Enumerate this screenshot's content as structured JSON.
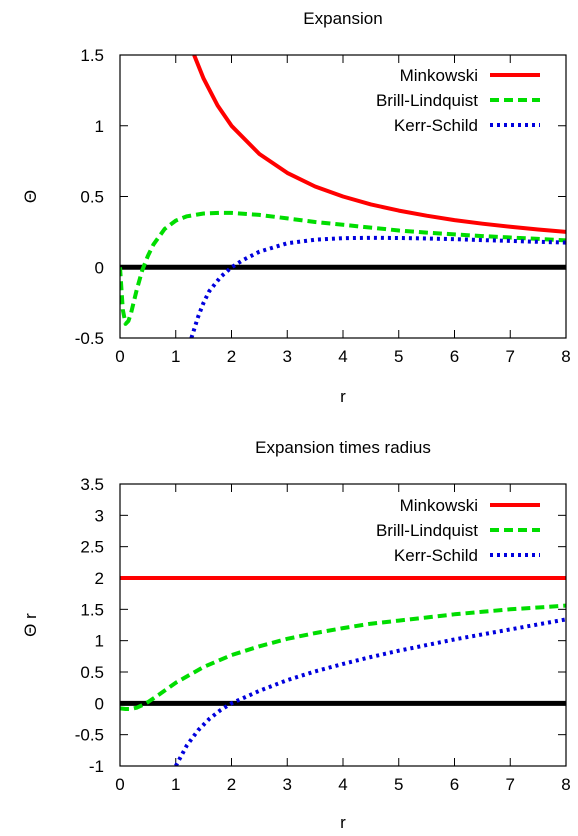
{
  "chart_data": [
    {
      "type": "line",
      "title": "Expansion",
      "xlabel": "r",
      "ylabel": "Θ",
      "xlim": [
        0,
        8
      ],
      "ylim": [
        -0.5,
        1.5
      ],
      "xticks": [
        "0",
        "1",
        "2",
        "3",
        "4",
        "5",
        "6",
        "7",
        "8"
      ],
      "yticks": [
        "-0.5",
        "0",
        "0.5",
        "1",
        "1.5"
      ],
      "legend_position": "top-right",
      "zero_line": true,
      "series": [
        {
          "name": "Minkowski",
          "color": "#ff0000",
          "dash": "solid",
          "x": [
            1.33,
            1.5,
            1.75,
            2.0,
            2.5,
            3.0,
            3.5,
            4.0,
            4.5,
            5.0,
            5.5,
            6.0,
            6.5,
            7.0,
            7.5,
            8.0
          ],
          "y": [
            1.5,
            1.333,
            1.143,
            1.0,
            0.8,
            0.667,
            0.571,
            0.5,
            0.444,
            0.4,
            0.364,
            0.333,
            0.308,
            0.286,
            0.267,
            0.25
          ]
        },
        {
          "name": "Brill-Lindquist",
          "color": "#00dd00",
          "dash": "dashed",
          "x": [
            0.0,
            0.05,
            0.1,
            0.15,
            0.2,
            0.3,
            0.4,
            0.5,
            0.6,
            0.8,
            1.0,
            1.2,
            1.5,
            1.8,
            2.0,
            2.5,
            3.0,
            3.5,
            4.0,
            4.5,
            5.0,
            5.5,
            6.0,
            6.5,
            7.0,
            7.5,
            8.0
          ],
          "y": [
            0.0,
            -0.3,
            -0.4,
            -0.38,
            -0.32,
            -0.16,
            -0.02,
            0.08,
            0.16,
            0.27,
            0.33,
            0.36,
            0.38,
            0.385,
            0.384,
            0.37,
            0.345,
            0.32,
            0.3,
            0.28,
            0.26,
            0.245,
            0.232,
            0.22,
            0.21,
            0.2,
            0.19
          ]
        },
        {
          "name": "Kerr-Schild",
          "color": "#0000dd",
          "dash": "dotted",
          "x": [
            1.28,
            1.4,
            1.5,
            1.6,
            1.8,
            2.0,
            2.2,
            2.5,
            3.0,
            3.5,
            4.0,
            4.5,
            5.0,
            5.5,
            6.0,
            6.5,
            7.0,
            7.5,
            8.0
          ],
          "y": [
            -0.5,
            -0.35,
            -0.25,
            -0.17,
            -0.07,
            0.0,
            0.05,
            0.11,
            0.17,
            0.195,
            0.205,
            0.208,
            0.207,
            0.203,
            0.198,
            0.192,
            0.186,
            0.18,
            0.174
          ]
        }
      ]
    },
    {
      "type": "line",
      "title": "Expansion times radius",
      "xlabel": "r",
      "ylabel": "Θ r",
      "xlim": [
        0,
        8
      ],
      "ylim": [
        -1,
        3.5
      ],
      "xticks": [
        "0",
        "1",
        "2",
        "3",
        "4",
        "5",
        "6",
        "7",
        "8"
      ],
      "yticks": [
        "-1",
        "-0.5",
        "0",
        "0.5",
        "1",
        "1.5",
        "2",
        "2.5",
        "3",
        "3.5"
      ],
      "legend_position": "top-right",
      "zero_line": true,
      "series": [
        {
          "name": "Minkowski",
          "color": "#ff0000",
          "dash": "solid",
          "x": [
            0.0,
            8.0
          ],
          "y": [
            2.0,
            2.0
          ]
        },
        {
          "name": "Brill-Lindquist",
          "color": "#00dd00",
          "dash": "dashed",
          "x": [
            0.0,
            0.1,
            0.2,
            0.3,
            0.4,
            0.5,
            0.7,
            1.0,
            1.5,
            2.0,
            2.5,
            3.0,
            3.5,
            4.0,
            4.5,
            5.0,
            5.5,
            6.0,
            6.5,
            7.0,
            7.5,
            8.0
          ],
          "y": [
            -0.08,
            -0.09,
            -0.09,
            -0.07,
            -0.03,
            0.02,
            0.14,
            0.33,
            0.58,
            0.77,
            0.91,
            1.03,
            1.12,
            1.2,
            1.27,
            1.32,
            1.37,
            1.42,
            1.46,
            1.5,
            1.53,
            1.56
          ]
        },
        {
          "name": "Kerr-Schild",
          "color": "#0000dd",
          "dash": "dotted",
          "x": [
            1.0,
            1.2,
            1.4,
            1.6,
            1.8,
            2.0,
            2.5,
            3.0,
            3.5,
            4.0,
            4.5,
            5.0,
            5.5,
            6.0,
            6.5,
            7.0,
            7.5,
            8.0
          ],
          "y": [
            -1.0,
            -0.67,
            -0.43,
            -0.25,
            -0.11,
            0.0,
            0.2,
            0.37,
            0.51,
            0.63,
            0.74,
            0.84,
            0.93,
            1.02,
            1.1,
            1.18,
            1.26,
            1.34
          ]
        }
      ]
    }
  ]
}
